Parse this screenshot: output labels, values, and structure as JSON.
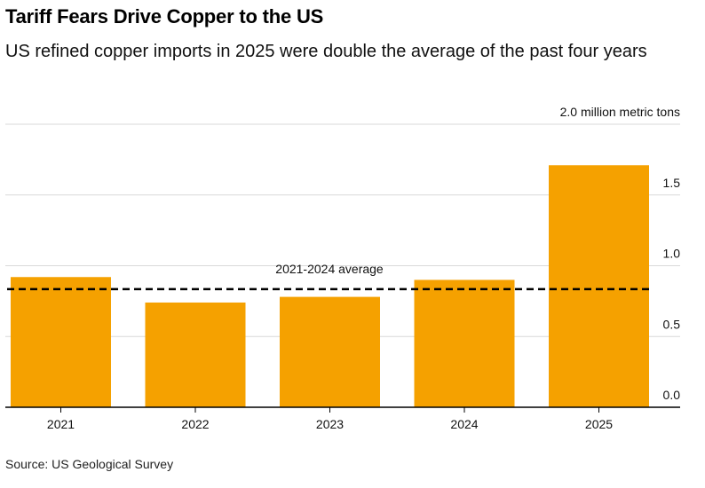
{
  "title": "Tariff Fears Drive Copper to the US",
  "subtitle": "US refined copper imports in 2025 were double the average of the past four years",
  "source": "Source: US Geological Survey",
  "colors": {
    "bar": "#F5A100",
    "grid": "#D9D9D9",
    "axis": "#000000"
  },
  "chart_data": {
    "type": "bar",
    "title": "Tariff Fears Drive Copper to the US",
    "unit_label": "2.0 million metric tons",
    "categories": [
      "2021",
      "2022",
      "2023",
      "2024",
      "2025"
    ],
    "values": [
      0.92,
      0.74,
      0.78,
      0.9,
      1.71
    ],
    "ylim": [
      0,
      2.0
    ],
    "yticks": [
      0.0,
      0.5,
      1.0,
      1.5,
      2.0
    ],
    "ytick_labels": [
      "0.0",
      "0.5",
      "1.0",
      "1.5",
      "2.0"
    ],
    "reference_line": {
      "label": "2021-2024 average",
      "value": 0.835
    },
    "xlabel": "",
    "ylabel": "million metric tons"
  }
}
